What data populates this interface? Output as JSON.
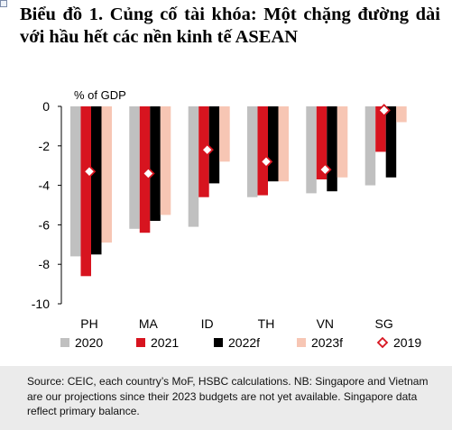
{
  "title": "Biểu đồ 1. Củng cố tài khóa: Một chặng đường dài với hầu hết các nền kinh tế ASEAN",
  "source_note": "Source: CEIC, each country’s MoF, HSBC calculations. NB: Singapore and Vietnam are our projections since their 2023 budgets are not yet available. Singapore data reflect primary balance.",
  "chart_data": {
    "type": "bar",
    "ylabel": "% of GDP",
    "ylim": [
      -10,
      0
    ],
    "yticks": [
      0,
      -2,
      -4,
      -6,
      -8,
      -10
    ],
    "categories": [
      "PH",
      "MA",
      "ID",
      "TH",
      "VN",
      "SG"
    ],
    "series": [
      {
        "name": "2020",
        "color": "#c0c0c0",
        "values": [
          -7.6,
          -6.2,
          -6.1,
          -4.6,
          -4.4,
          -4.0
        ]
      },
      {
        "name": "2021",
        "color": "#d7141f",
        "values": [
          -8.6,
          -6.4,
          -4.6,
          -4.5,
          -3.7,
          -2.3
        ]
      },
      {
        "name": "2022f",
        "color": "#000000",
        "values": [
          -7.5,
          -5.8,
          -3.9,
          -3.8,
          -4.3,
          -3.6
        ]
      },
      {
        "name": "2023f",
        "color": "#f7c6b4",
        "values": [
          -6.9,
          -5.5,
          -2.8,
          -3.8,
          -3.6,
          -0.8
        ]
      }
    ],
    "markers": {
      "name": "2019",
      "shape": "diamond",
      "color": "#d7141f",
      "values": [
        -3.3,
        -3.4,
        -2.2,
        -2.8,
        -3.2,
        -0.2
      ]
    },
    "legend_position": "bottom",
    "grid": false
  }
}
